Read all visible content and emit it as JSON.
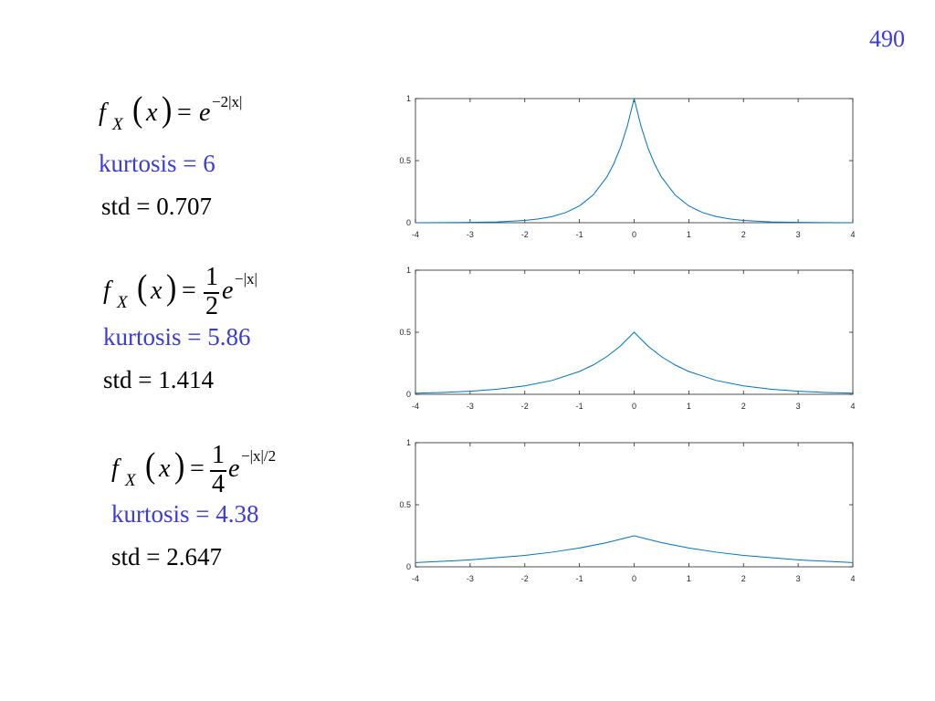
{
  "page_number": "490",
  "panels": [
    {
      "formula": {
        "lhs_f": "f",
        "lhs_sub": "X",
        "var": "x",
        "eq": "=",
        "coef_num": "",
        "coef_den": "",
        "base": "e",
        "exponent": "−2|x|"
      },
      "kurtosis": "kurtosis = 6",
      "std": "std = 0.707"
    },
    {
      "formula": {
        "lhs_f": "f",
        "lhs_sub": "X",
        "var": "x",
        "eq": "=",
        "coef_num": "1",
        "coef_den": "2",
        "base": "e",
        "exponent": "−|x|"
      },
      "kurtosis": "kurtosis = 5.86",
      "std": "std = 1.414"
    },
    {
      "formula": {
        "lhs_f": "f",
        "lhs_sub": "X",
        "var": "x",
        "eq": "=",
        "coef_num": "1",
        "coef_den": "4",
        "base": "e",
        "exponent": "−|x|/2"
      },
      "kurtosis": "kurtosis = 4.38",
      "std": "std = 2.647"
    }
  ],
  "chart_data": [
    {
      "type": "line",
      "xlim": [
        -4,
        4
      ],
      "ylim": [
        0,
        1
      ],
      "xticks": [
        -4,
        -3,
        -2,
        -1,
        0,
        1,
        2,
        3,
        4
      ],
      "yticks": [
        0,
        0.5,
        1
      ],
      "xtick_labels": [
        "-4",
        "-3",
        "-2",
        "-1",
        "0",
        "1",
        "2",
        "3",
        "4"
      ],
      "ytick_labels": [
        "0",
        "0.5",
        "1"
      ],
      "x": [
        -4,
        -3.5,
        -3,
        -2.5,
        -2,
        -1.75,
        -1.5,
        -1.25,
        -1,
        -0.75,
        -0.5,
        -0.375,
        -0.25,
        -0.125,
        0,
        0.125,
        0.25,
        0.375,
        0.5,
        0.75,
        1,
        1.25,
        1.5,
        1.75,
        2,
        2.5,
        3,
        3.5,
        4
      ],
      "y": [
        0.0003,
        0.0009,
        0.0025,
        0.0067,
        0.0183,
        0.0302,
        0.0498,
        0.0821,
        0.1353,
        0.2231,
        0.3679,
        0.4724,
        0.6065,
        0.7788,
        1.0,
        0.7788,
        0.6065,
        0.4724,
        0.3679,
        0.2231,
        0.1353,
        0.0821,
        0.0498,
        0.0302,
        0.0183,
        0.0067,
        0.0025,
        0.0009,
        0.0003
      ],
      "color": "#0072bd",
      "grid": false
    },
    {
      "type": "line",
      "xlim": [
        -4,
        4
      ],
      "ylim": [
        0,
        1
      ],
      "xticks": [
        -4,
        -3,
        -2,
        -1,
        0,
        1,
        2,
        3,
        4
      ],
      "yticks": [
        0,
        0.5,
        1
      ],
      "xtick_labels": [
        "-4",
        "-3",
        "-2",
        "-1",
        "0",
        "1",
        "2",
        "3",
        "4"
      ],
      "ytick_labels": [
        "0",
        "0.5",
        "1"
      ],
      "x": [
        -4,
        -3.5,
        -3,
        -2.5,
        -2,
        -1.5,
        -1,
        -0.75,
        -0.5,
        -0.25,
        0,
        0.25,
        0.5,
        0.75,
        1,
        1.5,
        2,
        2.5,
        3,
        3.5,
        4
      ],
      "y": [
        0.0092,
        0.0151,
        0.0249,
        0.041,
        0.0677,
        0.1116,
        0.1839,
        0.2362,
        0.3033,
        0.3894,
        0.5,
        0.3894,
        0.3033,
        0.2362,
        0.1839,
        0.1116,
        0.0677,
        0.041,
        0.0249,
        0.0151,
        0.0092
      ],
      "color": "#0072bd",
      "grid": false
    },
    {
      "type": "line",
      "xlim": [
        -4,
        4
      ],
      "ylim": [
        0,
        1
      ],
      "xticks": [
        -4,
        -3,
        -2,
        -1,
        0,
        1,
        2,
        3,
        4
      ],
      "yticks": [
        0,
        0.5,
        1
      ],
      "xtick_labels": [
        "-4",
        "-3",
        "-2",
        "-1",
        "0",
        "1",
        "2",
        "3",
        "4"
      ],
      "ytick_labels": [
        "0",
        "0.5",
        "1"
      ],
      "x": [
        -4,
        -3,
        -2,
        -1.5,
        -1,
        -0.5,
        0,
        0.5,
        1,
        1.5,
        2,
        3,
        4
      ],
      "y": [
        0.0338,
        0.0558,
        0.092,
        0.1181,
        0.1516,
        0.1947,
        0.25,
        0.1947,
        0.1516,
        0.1181,
        0.092,
        0.0558,
        0.0338
      ],
      "color": "#0072bd",
      "grid": false
    }
  ]
}
